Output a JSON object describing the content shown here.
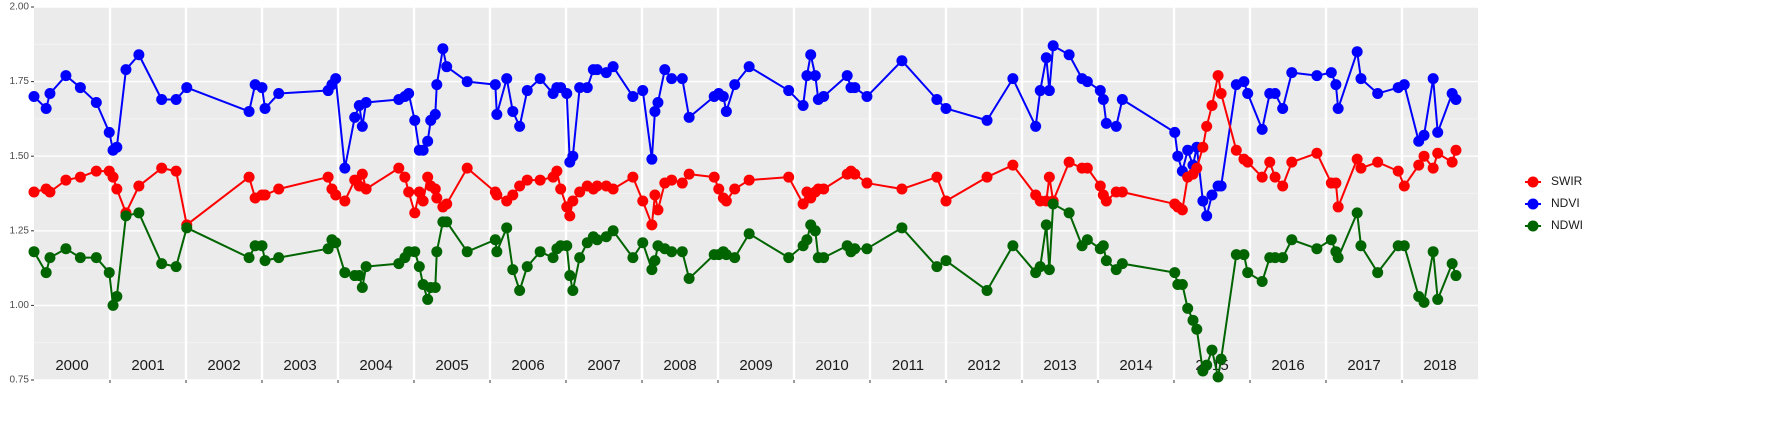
{
  "chart_data": {
    "type": "line",
    "xlim": [
      2000,
      2019
    ],
    "ylim": [
      0.75,
      2.0
    ],
    "yticks": [
      0.75,
      {
        "value": 1.0,
        "label": "1.00"
      },
      1.25,
      {
        "value": 1.5,
        "label": "1.50"
      },
      1.75,
      {
        "value": 2.0,
        "label": "2.00"
      }
    ],
    "xticks": [
      {
        "value": 2000.5,
        "label": "2000"
      },
      {
        "value": 2001.5,
        "label": "2001"
      },
      {
        "value": 2002.5,
        "label": "2002"
      },
      {
        "value": 2003.5,
        "label": "2003"
      },
      {
        "value": 2004.5,
        "label": "2004"
      },
      {
        "value": 2005.5,
        "label": "2005"
      },
      {
        "value": 2006.5,
        "label": "2006"
      },
      {
        "value": 2007.5,
        "label": "2007"
      },
      {
        "value": 2008.5,
        "label": "2008"
      },
      {
        "value": 2009.5,
        "label": "2009"
      },
      {
        "value": 2010.5,
        "label": "2010"
      },
      {
        "value": 2011.5,
        "label": "2011"
      },
      {
        "value": 2012.5,
        "label": "2012"
      },
      {
        "value": 2013.5,
        "label": "2013"
      },
      {
        "value": 2014.5,
        "label": "2014"
      },
      {
        "value": 2015.5,
        "label": "2015"
      },
      {
        "value": 2016.5,
        "label": "2016"
      },
      {
        "value": 2017.5,
        "label": "2017"
      },
      {
        "value": 2018.5,
        "label": "2018"
      }
    ],
    "grid": true,
    "legend": "right",
    "x": [
      2000.0,
      2000.16,
      2000.21,
      2000.42,
      2000.61,
      2000.82,
      2000.99,
      2001.04,
      2001.09,
      2001.21,
      2001.38,
      2001.68,
      2001.87,
      2002.01,
      2002.83,
      2002.91,
      2003.0,
      2003.04,
      2003.22,
      2003.87,
      2003.92,
      2003.97,
      2004.09,
      2004.22,
      2004.28,
      2004.32,
      2004.37,
      2004.8,
      2004.88,
      2004.93,
      2005.01,
      2005.07,
      2005.12,
      2005.18,
      2005.22,
      2005.28,
      2005.3,
      2005.38,
      2005.43,
      2005.7,
      2006.07,
      2006.09,
      2006.22,
      2006.3,
      2006.39,
      2006.49,
      2006.66,
      2006.83,
      2006.88,
      2006.93,
      2007.01,
      2007.05,
      2007.09,
      2007.18,
      2007.28,
      2007.36,
      2007.41,
      2007.53,
      2007.62,
      2007.88,
      2008.01,
      2008.13,
      2008.17,
      2008.21,
      2008.3,
      2008.39,
      2008.53,
      2008.62,
      2008.95,
      2009.01,
      2009.07,
      2009.11,
      2009.22,
      2009.41,
      2009.93,
      2010.12,
      2010.17,
      2010.22,
      2010.28,
      2010.32,
      2010.39,
      2010.7,
      2010.75,
      2010.8,
      2010.96,
      2011.42,
      2011.88,
      2012.0,
      2012.54,
      2012.88,
      2013.18,
      2013.24,
      2013.32,
      2013.36,
      2013.41,
      2013.62,
      2013.79,
      2013.86,
      2014.03,
      2014.07,
      2014.11,
      2014.24,
      2014.32,
      2015.01,
      2015.05,
      2015.11,
      2015.18,
      2015.25,
      2015.3,
      2015.38,
      2015.43,
      2015.5,
      2015.58,
      2015.62,
      2015.82,
      2015.92,
      2015.97,
      2016.16,
      2016.26,
      2016.33,
      2016.43,
      2016.55,
      2016.88,
      2017.07,
      2017.13,
      2017.16,
      2017.41,
      2017.46,
      2017.68,
      2017.95,
      2018.03,
      2018.22,
      2018.29,
      2018.41,
      2018.47,
      2018.66,
      2018.71
    ],
    "series": [
      {
        "name": "SWIR",
        "color": "#ff0000",
        "values": [
          1.38,
          1.39,
          1.38,
          1.42,
          1.43,
          1.45,
          1.45,
          1.43,
          1.39,
          1.31,
          1.4,
          1.46,
          1.45,
          1.27,
          1.43,
          1.36,
          1.37,
          1.37,
          1.39,
          1.43,
          1.39,
          1.37,
          1.35,
          1.42,
          1.4,
          1.44,
          1.39,
          1.46,
          1.43,
          1.38,
          1.31,
          1.38,
          1.35,
          1.43,
          1.4,
          1.39,
          1.36,
          1.33,
          1.34,
          1.46,
          1.38,
          1.37,
          1.35,
          1.37,
          1.4,
          1.42,
          1.42,
          1.43,
          1.45,
          1.39,
          1.33,
          1.3,
          1.35,
          1.38,
          1.4,
          1.39,
          1.4,
          1.4,
          1.39,
          1.43,
          1.35,
          1.27,
          1.37,
          1.32,
          1.41,
          1.42,
          1.41,
          1.44,
          1.43,
          1.39,
          1.36,
          1.35,
          1.39,
          1.42,
          1.43,
          1.34,
          1.38,
          1.36,
          1.38,
          1.39,
          1.39,
          1.44,
          1.45,
          1.44,
          1.41,
          1.39,
          1.43,
          1.35,
          1.43,
          1.47,
          1.37,
          1.35,
          1.35,
          1.43,
          1.35,
          1.48,
          1.46,
          1.46,
          1.4,
          1.37,
          1.35,
          1.38,
          1.38,
          1.34,
          1.33,
          1.32,
          1.43,
          1.44,
          1.46,
          1.53,
          1.6,
          1.67,
          1.77,
          1.71,
          1.52,
          1.49,
          1.48,
          1.43,
          1.48,
          1.43,
          1.4,
          1.48,
          1.51,
          1.41,
          1.41,
          1.33,
          1.49,
          1.46,
          1.48,
          1.45,
          1.4,
          1.47,
          1.5,
          1.46,
          1.51,
          1.48,
          1.52
        ]
      },
      {
        "name": "NDVI",
        "color": "#0000ff",
        "values": [
          1.7,
          1.66,
          1.71,
          1.77,
          1.73,
          1.68,
          1.58,
          1.52,
          1.53,
          1.79,
          1.84,
          1.69,
          1.69,
          1.73,
          1.65,
          1.74,
          1.73,
          1.66,
          1.71,
          1.72,
          1.74,
          1.76,
          1.46,
          1.63,
          1.67,
          1.6,
          1.68,
          1.69,
          1.7,
          1.71,
          1.62,
          1.52,
          1.52,
          1.55,
          1.62,
          1.64,
          1.74,
          1.86,
          1.8,
          1.75,
          1.74,
          1.64,
          1.76,
          1.65,
          1.6,
          1.72,
          1.76,
          1.71,
          1.73,
          1.73,
          1.71,
          1.48,
          1.5,
          1.73,
          1.73,
          1.79,
          1.79,
          1.78,
          1.8,
          1.7,
          1.72,
          1.49,
          1.65,
          1.68,
          1.79,
          1.76,
          1.76,
          1.63,
          1.7,
          1.71,
          1.7,
          1.65,
          1.74,
          1.8,
          1.72,
          1.67,
          1.77,
          1.84,
          1.77,
          1.69,
          1.7,
          1.77,
          1.73,
          1.73,
          1.7,
          1.82,
          1.69,
          1.66,
          1.62,
          1.76,
          1.6,
          1.72,
          1.83,
          1.72,
          1.87,
          1.84,
          1.76,
          1.75,
          1.72,
          1.69,
          1.61,
          1.6,
          1.69,
          1.58,
          1.5,
          1.45,
          1.52,
          1.47,
          1.53,
          1.35,
          1.3,
          1.37,
          1.4,
          1.4,
          1.74,
          1.75,
          1.71,
          1.59,
          1.71,
          1.71,
          1.66,
          1.78,
          1.77,
          1.78,
          1.74,
          1.66,
          1.85,
          1.76,
          1.71,
          1.73,
          1.74,
          1.55,
          1.57,
          1.76,
          1.58,
          1.71,
          1.69
        ]
      },
      {
        "name": "NDWI",
        "color": "#006400",
        "values": [
          1.18,
          1.11,
          1.16,
          1.19,
          1.16,
          1.16,
          1.11,
          1.0,
          1.03,
          1.3,
          1.31,
          1.14,
          1.13,
          1.26,
          1.16,
          1.2,
          1.2,
          1.15,
          1.16,
          1.19,
          1.22,
          1.21,
          1.11,
          1.1,
          1.1,
          1.06,
          1.13,
          1.14,
          1.16,
          1.18,
          1.18,
          1.13,
          1.07,
          1.02,
          1.06,
          1.06,
          1.18,
          1.28,
          1.28,
          1.18,
          1.22,
          1.18,
          1.26,
          1.12,
          1.05,
          1.13,
          1.18,
          1.16,
          1.19,
          1.2,
          1.2,
          1.1,
          1.05,
          1.16,
          1.21,
          1.23,
          1.22,
          1.23,
          1.25,
          1.16,
          1.21,
          1.12,
          1.15,
          1.2,
          1.19,
          1.18,
          1.18,
          1.09,
          1.17,
          1.17,
          1.18,
          1.17,
          1.16,
          1.24,
          1.16,
          1.2,
          1.22,
          1.27,
          1.25,
          1.16,
          1.16,
          1.2,
          1.18,
          1.19,
          1.19,
          1.26,
          1.13,
          1.15,
          1.05,
          1.2,
          1.11,
          1.13,
          1.27,
          1.12,
          1.34,
          1.31,
          1.2,
          1.22,
          1.19,
          1.2,
          1.15,
          1.12,
          1.14,
          1.11,
          1.07,
          1.07,
          0.99,
          0.95,
          0.92,
          0.78,
          0.8,
          0.85,
          0.76,
          0.82,
          1.17,
          1.17,
          1.11,
          1.08,
          1.16,
          1.16,
          1.16,
          1.22,
          1.19,
          1.22,
          1.18,
          1.16,
          1.31,
          1.2,
          1.11,
          1.2,
          1.2,
          1.03,
          1.01,
          1.18,
          1.02,
          1.14,
          1.1
        ]
      }
    ]
  }
}
